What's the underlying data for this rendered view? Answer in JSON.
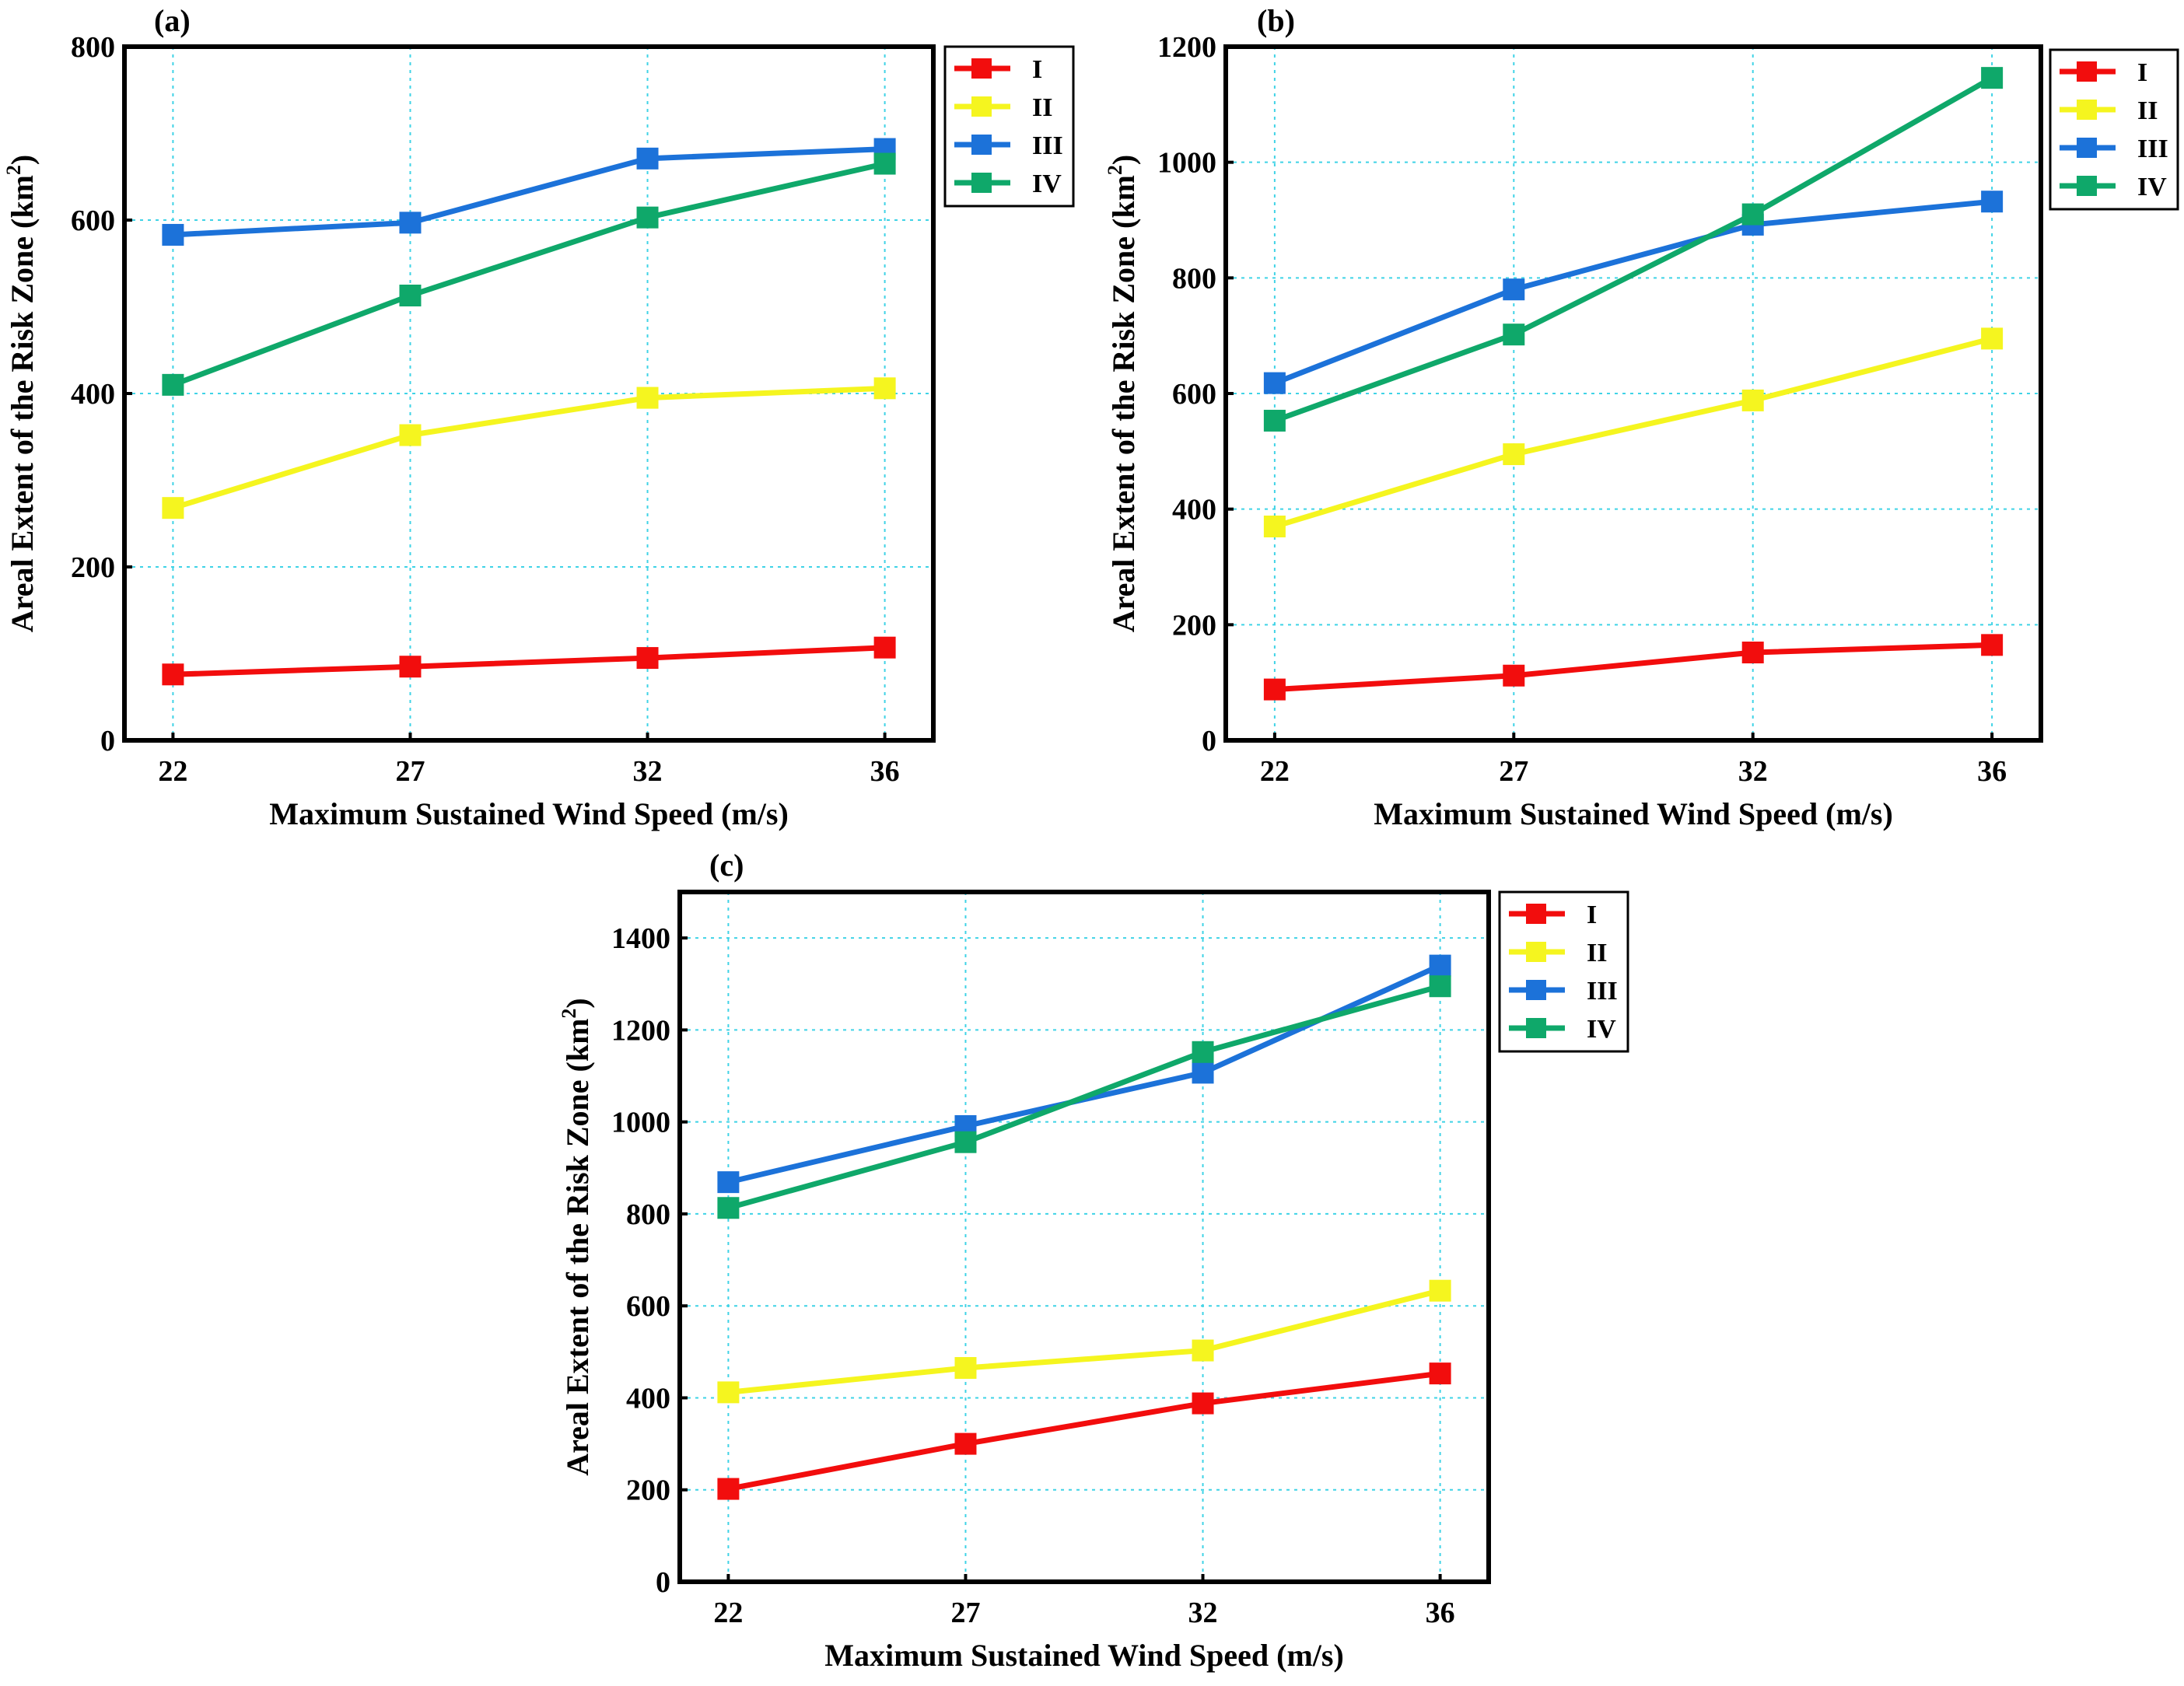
{
  "colors": {
    "I": "#f20d0d",
    "II": "#f5f51f",
    "III": "#1c72d9",
    "IV": "#0fa86a",
    "grid": "#3fd3e6"
  },
  "chart_data": [
    {
      "type": "line",
      "panel_label": "(a)",
      "xlabel": "Maximum Sustained Wind Speed (m/s)",
      "ylabel": "Areal Extent of the Risk Zone (km",
      "ylabel_sup": "2",
      "ylabel_end": ")",
      "categories": [
        "22",
        "27",
        "32",
        "36"
      ],
      "ylim": [
        0,
        800
      ],
      "yticks": [
        0,
        200,
        400,
        600,
        800
      ],
      "legend": "right, outside",
      "series": [
        {
          "name": "I",
          "values": [
            76,
            85,
            95,
            107
          ]
        },
        {
          "name": "II",
          "values": [
            268,
            352,
            395,
            406
          ]
        },
        {
          "name": "III",
          "values": [
            583,
            597,
            671,
            682
          ]
        },
        {
          "name": "IV",
          "values": [
            410,
            513,
            603,
            665
          ]
        }
      ]
    },
    {
      "type": "line",
      "panel_label": "(b)",
      "xlabel": "Maximum Sustained Wind Speed (m/s)",
      "ylabel": "Areal Extent of the Risk Zone (km",
      "ylabel_sup": "2",
      "ylabel_end": ")",
      "categories": [
        "22",
        "27",
        "32",
        "36"
      ],
      "ylim": [
        0,
        1200
      ],
      "yticks": [
        0,
        200,
        400,
        600,
        800,
        1000,
        1200
      ],
      "legend": "right, outside",
      "series": [
        {
          "name": "I",
          "values": [
            88,
            112,
            152,
            165
          ]
        },
        {
          "name": "II",
          "values": [
            370,
            495,
            588,
            695
          ]
        },
        {
          "name": "III",
          "values": [
            618,
            780,
            892,
            932
          ]
        },
        {
          "name": "IV",
          "values": [
            553,
            702,
            910,
            1146
          ]
        }
      ]
    },
    {
      "type": "line",
      "panel_label": "(c)",
      "xlabel": "Maximum Sustained Wind Speed (m/s)",
      "ylabel": "Areal Extent of the Risk Zone (km",
      "ylabel_sup": "2",
      "ylabel_end": ")",
      "categories": [
        "22",
        "27",
        "32",
        "36"
      ],
      "ylim": [
        0,
        1500
      ],
      "yticks": [
        0,
        200,
        400,
        600,
        800,
        1000,
        1200,
        1400
      ],
      "legend": "right, outside",
      "series": [
        {
          "name": "I",
          "values": [
            202,
            300,
            388,
            453
          ]
        },
        {
          "name": "II",
          "values": [
            412,
            465,
            503,
            633
          ]
        },
        {
          "name": "III",
          "values": [
            869,
            991,
            1107,
            1340
          ]
        },
        {
          "name": "IV",
          "values": [
            813,
            956,
            1152,
            1295
          ]
        }
      ]
    }
  ]
}
